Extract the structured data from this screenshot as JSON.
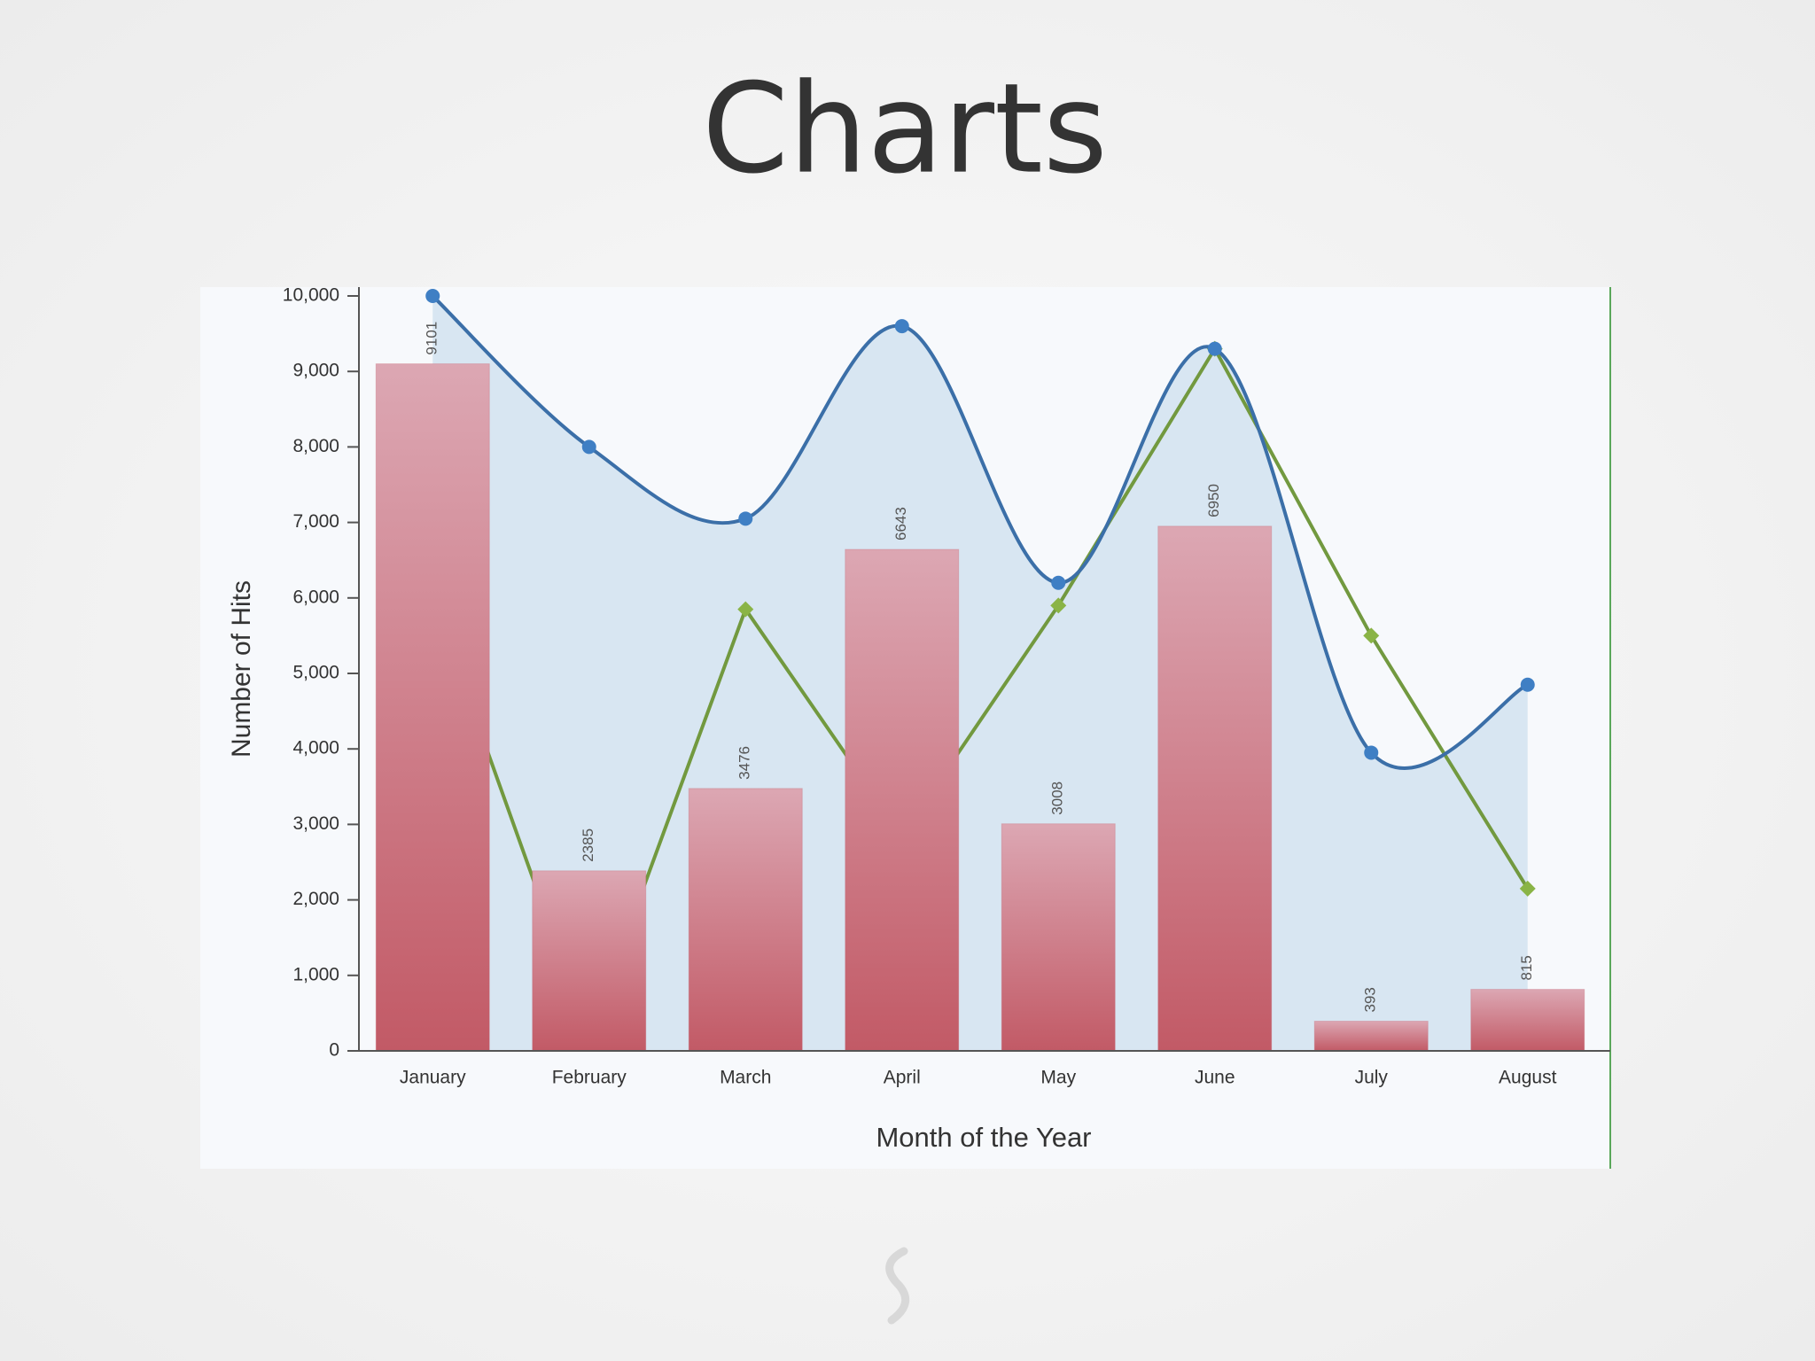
{
  "chart_data": {
    "type": "bar",
    "title": "Charts",
    "x_label": "Month of the Year",
    "y_label": "Number of Hits",
    "categories": [
      "January",
      "February",
      "March",
      "April",
      "May",
      "June",
      "July",
      "August"
    ],
    "series": [
      {
        "type": "area",
        "smooth": true,
        "marker": "circle",
        "color": "#3b6fa8",
        "fill": "#d4e3f1",
        "values": [
          10000,
          8000,
          7050,
          9600,
          6200,
          9300,
          3950,
          4850
        ]
      },
      {
        "type": "line",
        "marker": "diamond",
        "color": "#72993f",
        "values": [
          6000,
          200,
          5850,
          2850,
          5900,
          9300,
          5500,
          2150
        ]
      },
      {
        "type": "bar",
        "color": "#c4606c",
        "values": [
          9101,
          2385,
          3476,
          6643,
          3008,
          6950,
          393,
          815
        ]
      }
    ],
    "ylim": [
      0,
      10000
    ],
    "yticks": [
      0,
      {
        "value": 1000,
        "label": "1,000"
      },
      {
        "value": 2000,
        "label": "2,000"
      },
      {
        "value": 3000,
        "label": "3,000"
      },
      {
        "value": 4000,
        "label": "4,000"
      },
      {
        "value": 5000,
        "label": "5,000"
      },
      {
        "value": 6000,
        "label": "6,000"
      },
      {
        "value": 7000,
        "label": "7,000"
      },
      {
        "value": 8000,
        "label": "8,000"
      },
      {
        "value": 9000,
        "label": "9,000"
      },
      {
        "value": 10000,
        "label": "10,000"
      }
    ],
    "grid": false
  }
}
